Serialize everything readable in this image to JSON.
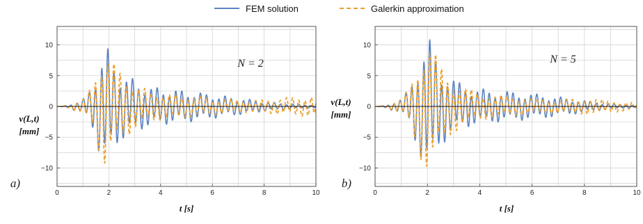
{
  "legend": {
    "items": [
      {
        "label": "FEM solution",
        "color": "#5b84c1",
        "style": "solid"
      },
      {
        "label": "Galerkin approximation",
        "color": "#eba032",
        "style": "dashed"
      }
    ]
  },
  "chart_data": [
    {
      "type": "line",
      "panel_label": "a)",
      "annotation": "N = 2",
      "xlabel": "t [s]",
      "ylabel_top": "v(L,t)",
      "ylabel_bottom": "[mm]",
      "xlim": [
        0,
        10
      ],
      "ylim": [
        -13,
        13
      ],
      "xticks": [
        0,
        2,
        4,
        6,
        8,
        10
      ],
      "yticks": [
        -10,
        -5,
        0,
        5,
        10
      ],
      "yticklabels": [
        "−10",
        "−5",
        "0",
        "5",
        "10"
      ],
      "grid": true,
      "series": [
        {
          "name": "FEM solution",
          "envelope_t": [
            0,
            0.5,
            1.0,
            1.3,
            1.5,
            1.65,
            1.8,
            1.9,
            2.0,
            2.2,
            2.4,
            2.8,
            3.2,
            3.6,
            4.0,
            4.5,
            5.0,
            5.5,
            6.0,
            6.5,
            7.0,
            7.5,
            8.0,
            8.5,
            9.0,
            9.5,
            10.0
          ],
          "envelope_amp": [
            0.1,
            0.4,
            1.2,
            3.0,
            5.5,
            8.2,
            9.5,
            10.0,
            9.0,
            7.0,
            6.0,
            4.8,
            3.9,
            3.3,
            3.0,
            2.8,
            2.6,
            2.3,
            2.0,
            1.7,
            1.4,
            1.1,
            0.85,
            0.6,
            0.4,
            0.3,
            0.25
          ]
        },
        {
          "name": "Galerkin approximation",
          "envelope_t": [
            0,
            0.5,
            1.0,
            1.3,
            1.5,
            1.65,
            1.8,
            1.9,
            2.0,
            2.2,
            2.4,
            2.8,
            3.2,
            3.6,
            4.0,
            4.5,
            5.0,
            5.5,
            6.0,
            6.5,
            7.0,
            7.5,
            8.0,
            8.5,
            9.0,
            9.5,
            10.0
          ],
          "envelope_amp": [
            0.1,
            0.4,
            1.2,
            3.0,
            5.5,
            8.2,
            9.5,
            10.0,
            9.0,
            7.0,
            6.0,
            4.5,
            3.2,
            2.6,
            2.2,
            2.0,
            1.8,
            1.6,
            1.4,
            1.2,
            1.1,
            1.0,
            1.1,
            1.3,
            1.5,
            1.6,
            1.8
          ]
        }
      ]
    },
    {
      "type": "line",
      "panel_label": "b)",
      "annotation": "N = 5",
      "xlabel": "t [s]",
      "ylabel_top": "v(L,t)",
      "ylabel_bottom": "[mm]",
      "xlim": [
        0,
        10
      ],
      "ylim": [
        -13,
        13
      ],
      "xticks": [
        0,
        2,
        4,
        6,
        8,
        10
      ],
      "yticks": [
        -10,
        -5,
        0,
        5,
        10
      ],
      "yticklabels": [
        "−10",
        "−5",
        "0",
        "5",
        "10"
      ],
      "grid": true,
      "series": [
        {
          "name": "FEM solution",
          "envelope_t": [
            0,
            0.5,
            1.0,
            1.3,
            1.5,
            1.7,
            1.9,
            2.05,
            2.2,
            2.4,
            2.6,
            3.0,
            3.4,
            3.8,
            4.2,
            4.6,
            5.0,
            5.5,
            6.0,
            6.5,
            7.0,
            7.5,
            8.0,
            8.5,
            9.0,
            9.5,
            10.0
          ],
          "envelope_amp": [
            0.1,
            0.4,
            1.2,
            3.0,
            5.5,
            8.0,
            10.5,
            11.2,
            10.0,
            7.5,
            6.0,
            4.5,
            3.6,
            3.0,
            2.8,
            2.6,
            2.5,
            2.3,
            2.1,
            1.9,
            1.6,
            1.3,
            1.0,
            0.7,
            0.45,
            0.3,
            0.2
          ]
        },
        {
          "name": "Galerkin approximation",
          "envelope_t": [
            0,
            0.5,
            1.0,
            1.3,
            1.5,
            1.7,
            1.9,
            2.05,
            2.2,
            2.4,
            2.6,
            3.0,
            3.4,
            3.8,
            4.2,
            4.6,
            5.0,
            5.5,
            6.0,
            6.5,
            7.0,
            7.5,
            8.0,
            8.5,
            9.0,
            9.5,
            10.0
          ],
          "envelope_amp": [
            0.1,
            0.4,
            1.2,
            3.0,
            5.5,
            8.0,
            10.5,
            11.2,
            10.0,
            7.5,
            6.0,
            4.3,
            3.2,
            2.5,
            2.1,
            1.9,
            1.7,
            1.5,
            1.3,
            1.2,
            1.1,
            1.2,
            1.3,
            1.2,
            1.0,
            0.8,
            0.6
          ]
        }
      ]
    }
  ]
}
